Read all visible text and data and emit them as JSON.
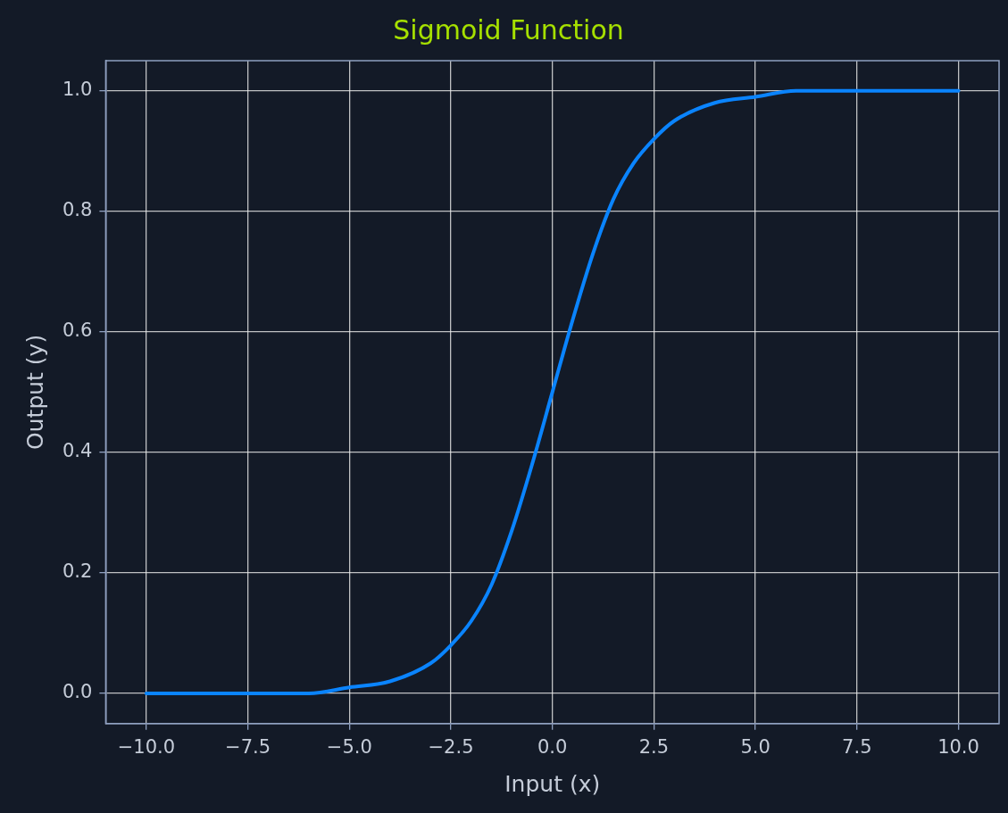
{
  "chart_data": {
    "type": "line",
    "title": "Sigmoid Function",
    "xlabel": "Input (x)",
    "ylabel": "Output (y)",
    "x": [
      -10,
      -8,
      -6,
      -5,
      -4,
      -3,
      -2.5,
      -2,
      -1.5,
      -1,
      -0.5,
      0,
      0.5,
      1,
      1.5,
      2,
      2.5,
      3,
      4,
      5,
      6,
      8,
      10
    ],
    "series": [
      {
        "color": "#0a84ff",
        "values": [
          0.0,
          0.0,
          0.0,
          0.01,
          0.02,
          0.05,
          0.08,
          0.12,
          0.18,
          0.27,
          0.38,
          0.5,
          0.62,
          0.73,
          0.82,
          0.88,
          0.92,
          0.95,
          0.98,
          0.99,
          1.0,
          1.0,
          1.0
        ]
      }
    ],
    "xlim": [
      -11,
      11
    ],
    "ylim": [
      -0.05,
      1.05
    ],
    "xticks": [
      {
        "value": -10,
        "label": "−10.0"
      },
      {
        "value": -7.5,
        "label": "−7.5"
      },
      {
        "value": -5,
        "label": "−5.0"
      },
      {
        "value": -2.5,
        "label": "−2.5"
      },
      {
        "value": 0,
        "label": "0.0"
      },
      {
        "value": 2.5,
        "label": "2.5"
      },
      {
        "value": 5,
        "label": "5.0"
      },
      {
        "value": 7.5,
        "label": "7.5"
      },
      {
        "value": 10,
        "label": "10.0"
      }
    ],
    "yticks": [
      {
        "value": 0,
        "label": "0.0"
      },
      {
        "value": 0.2,
        "label": "0.2"
      },
      {
        "value": 0.4,
        "label": "0.4"
      },
      {
        "value": 0.6,
        "label": "0.6"
      },
      {
        "value": 0.8,
        "label": "0.8"
      },
      {
        "value": 1,
        "label": "1.0"
      }
    ],
    "grid": true,
    "marker": "none",
    "line_style": "solid"
  }
}
